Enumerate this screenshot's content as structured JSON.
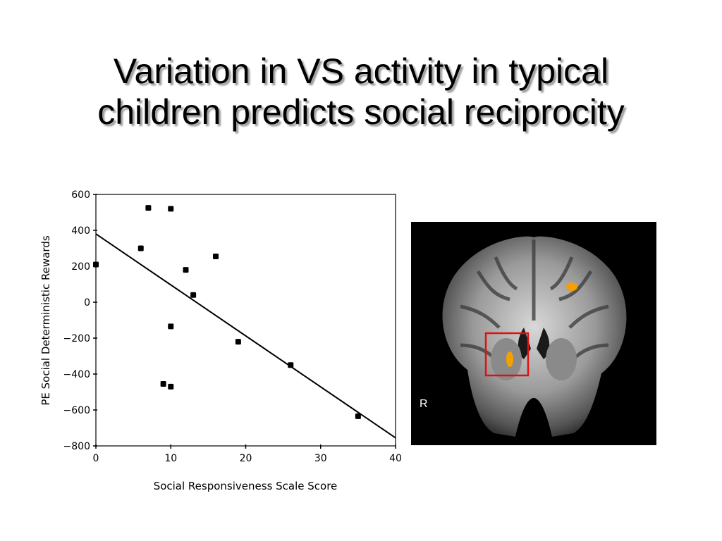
{
  "slide": {
    "title_line1": "Variation in VS activity in typical",
    "title_line2": "children predicts social reciprocity"
  },
  "brain_image": {
    "side_label": "R",
    "roi_box_color": "#e01010",
    "activation_color": "#f5a000"
  },
  "chart_data": {
    "type": "scatter",
    "xlabel": "Social Responsiveness Scale Score",
    "ylabel": "PE Social Deterministic Rewards",
    "xlim": [
      0,
      40
    ],
    "ylim": [
      -800,
      600
    ],
    "xticks": [
      0,
      10,
      20,
      30,
      40
    ],
    "yticks": [
      600,
      400,
      200,
      0,
      -200,
      -400,
      -600,
      -800
    ],
    "ytick_labels": [
      "600",
      "400",
      "200",
      "0",
      "−200",
      "−400",
      "−600",
      "−800"
    ],
    "grid": false,
    "points": [
      {
        "x": 0,
        "y": 210
      },
      {
        "x": 6,
        "y": 300
      },
      {
        "x": 7,
        "y": 525
      },
      {
        "x": 10,
        "y": 520
      },
      {
        "x": 10,
        "y": -135
      },
      {
        "x": 9,
        "y": -455
      },
      {
        "x": 10,
        "y": -470
      },
      {
        "x": 12,
        "y": 180
      },
      {
        "x": 13,
        "y": 40
      },
      {
        "x": 16,
        "y": 255
      },
      {
        "x": 19,
        "y": -220
      },
      {
        "x": 26,
        "y": -350
      },
      {
        "x": 35,
        "y": -635
      }
    ],
    "fit_line": {
      "x": [
        0,
        40
      ],
      "y": [
        380,
        -755
      ]
    }
  }
}
